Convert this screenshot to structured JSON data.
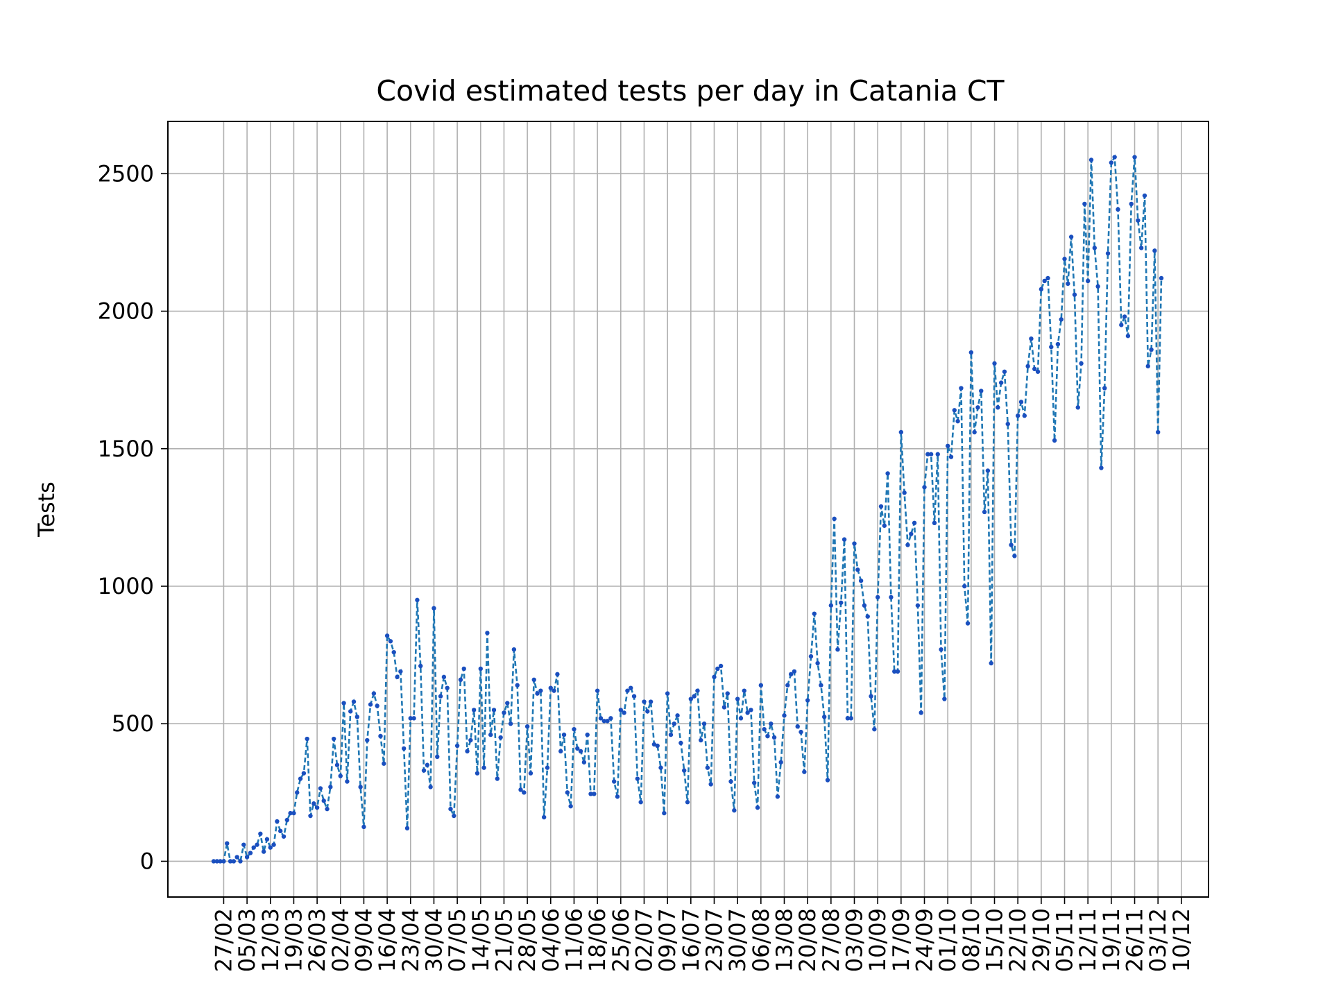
{
  "chart_data": {
    "type": "line",
    "title": "Covid estimated tests per day in Catania CT",
    "xlabel": "",
    "ylabel": "Tests",
    "ylim": [
      -130,
      2690
    ],
    "yticks": [
      0,
      500,
      1000,
      1500,
      2000,
      2500
    ],
    "ytick_labels": [
      "0",
      "500",
      "1000",
      "1500",
      "2000",
      "2500"
    ],
    "xticks": [
      "27/02",
      "05/03",
      "12/03",
      "19/03",
      "26/03",
      "02/04",
      "09/04",
      "16/04",
      "23/04",
      "30/04",
      "07/05",
      "14/05",
      "21/05",
      "28/05",
      "04/06",
      "11/06",
      "18/06",
      "25/06",
      "02/07",
      "09/07",
      "16/07",
      "23/07",
      "30/07",
      "06/08",
      "13/08",
      "20/08",
      "27/08",
      "03/09",
      "10/09",
      "17/09",
      "24/09",
      "01/10",
      "08/10",
      "15/10",
      "22/10",
      "29/10",
      "05/11",
      "12/11",
      "19/11",
      "26/11",
      "03/12",
      "10/12"
    ],
    "grid": true,
    "line_style": "dashed",
    "marker": "dot",
    "colors": {
      "line": "#1f77b4",
      "marker": "#1a4fbf",
      "grid": "#b0b0b0"
    },
    "series": [
      {
        "name": "",
        "x_start": "24/02",
        "values": [
          0,
          0,
          0,
          0,
          65,
          0,
          0,
          15,
          0,
          60,
          15,
          30,
          50,
          60,
          100,
          35,
          80,
          50,
          60,
          145,
          110,
          90,
          150,
          175,
          175,
          250,
          300,
          320,
          445,
          165,
          210,
          195,
          265,
          220,
          190,
          270,
          445,
          350,
          310,
          575,
          290,
          545,
          580,
          525,
          270,
          125,
          440,
          570,
          610,
          565,
          455,
          355,
          820,
          800,
          760,
          670,
          690,
          410,
          120,
          520,
          520,
          950,
          710,
          330,
          350,
          270,
          920,
          380,
          600,
          670,
          630,
          190,
          165,
          420,
          660,
          700,
          400,
          440,
          550,
          320,
          700,
          340,
          830,
          460,
          550,
          300,
          450,
          540,
          575,
          500,
          770,
          640,
          260,
          250,
          490,
          320,
          660,
          610,
          620,
          160,
          340,
          630,
          620,
          680,
          400,
          460,
          250,
          200,
          480,
          410,
          400,
          360,
          460,
          245,
          245,
          620,
          520,
          510,
          510,
          520,
          290,
          235,
          550,
          540,
          620,
          630,
          600,
          300,
          215,
          580,
          545,
          580,
          425,
          420,
          340,
          175,
          610,
          460,
          500,
          530,
          430,
          330,
          215,
          590,
          600,
          620,
          440,
          500,
          340,
          280,
          670,
          700,
          710,
          560,
          610,
          290,
          185,
          590,
          520,
          620,
          540,
          550,
          285,
          195,
          640,
          480,
          455,
          500,
          450,
          235,
          360,
          530,
          640,
          680,
          690,
          490,
          470,
          325,
          585,
          745,
          900,
          720,
          640,
          525,
          295,
          930,
          1245,
          770,
          940,
          1170,
          520,
          520,
          1155,
          1060,
          1020,
          930,
          890,
          600,
          480,
          960,
          1290,
          1220,
          1410,
          960,
          690,
          690,
          1560,
          1340,
          1150,
          1190,
          1230,
          930,
          540,
          1360,
          1480,
          1480,
          1230,
          1480,
          770,
          590,
          1510,
          1470,
          1640,
          1600,
          1720,
          1000,
          865,
          1850,
          1560,
          1650,
          1710,
          1270,
          1420,
          720,
          1810,
          1650,
          1740,
          1780,
          1590,
          1150,
          1110,
          1620,
          1670,
          1620,
          1800,
          1900,
          1790,
          1780,
          2080,
          2110,
          2120,
          1870,
          1530,
          1880,
          1970,
          2190,
          2100,
          2270,
          2060,
          1650,
          1810,
          2390,
          2110,
          2550,
          2230,
          2090,
          1430,
          1720,
          2210,
          2540,
          2560,
          2370,
          1950,
          1980,
          1910,
          2390,
          2560,
          2330,
          2230,
          2420,
          1800,
          1860,
          2220,
          1560,
          2120
        ]
      }
    ]
  }
}
